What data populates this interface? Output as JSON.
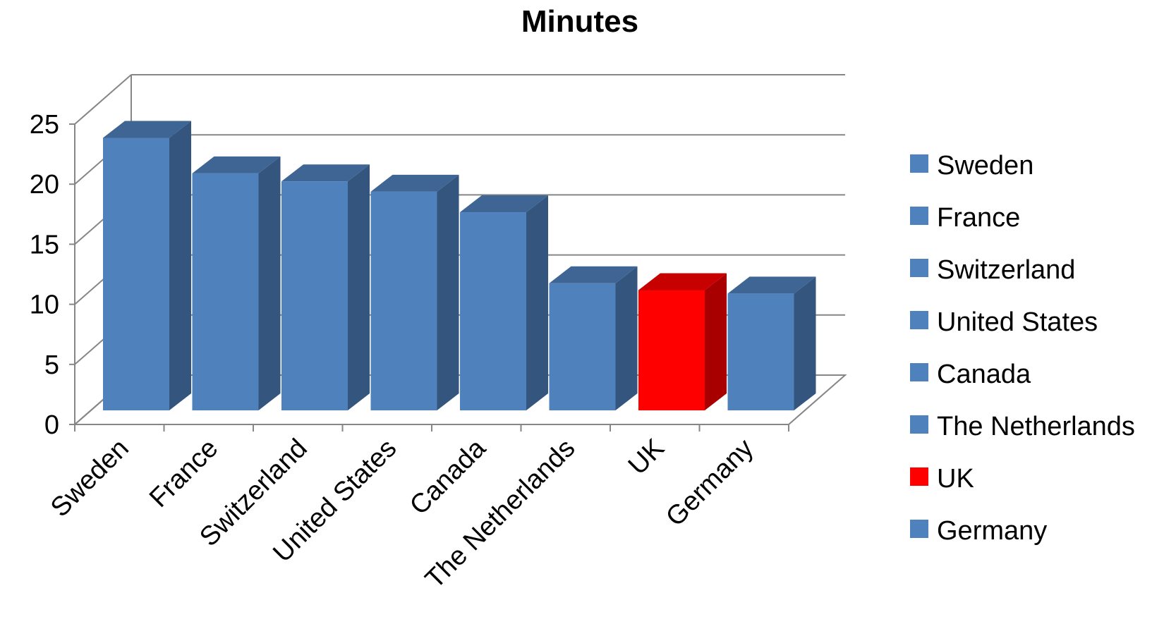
{
  "chart_data": {
    "type": "bar",
    "title": "Minutes",
    "xlabel": "",
    "ylabel": "",
    "ylim": [
      0,
      25
    ],
    "yticks": [
      0,
      5,
      10,
      15,
      20,
      25
    ],
    "grid": true,
    "legend_position": "right",
    "categories": [
      "Sweden",
      "France",
      "Switzerland",
      "United States",
      "Canada",
      "The Netherlands",
      "UK",
      "Germany"
    ],
    "values": [
      23.8,
      20.7,
      20.0,
      19.1,
      17.3,
      11.1,
      10.5,
      10.2
    ],
    "colors": [
      "#4f81bd",
      "#4f81bd",
      "#4f81bd",
      "#4f81bd",
      "#4f81bd",
      "#4f81bd",
      "#ff0000",
      "#4f81bd"
    ]
  }
}
